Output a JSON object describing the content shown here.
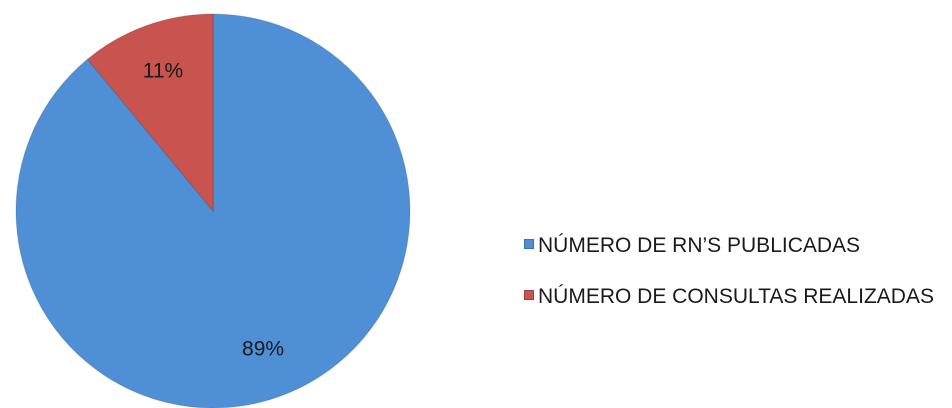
{
  "chart_data": {
    "type": "pie",
    "categories": [
      "NÚMERO DE RN’S PUBLICADAS",
      "NÚMERO DE CONSULTAS REALIZADAS"
    ],
    "values": [
      89,
      11
    ],
    "value_labels": [
      "89%",
      "11%"
    ],
    "colors": [
      "#4f8fd6",
      "#c9534f"
    ],
    "legend": "right"
  }
}
